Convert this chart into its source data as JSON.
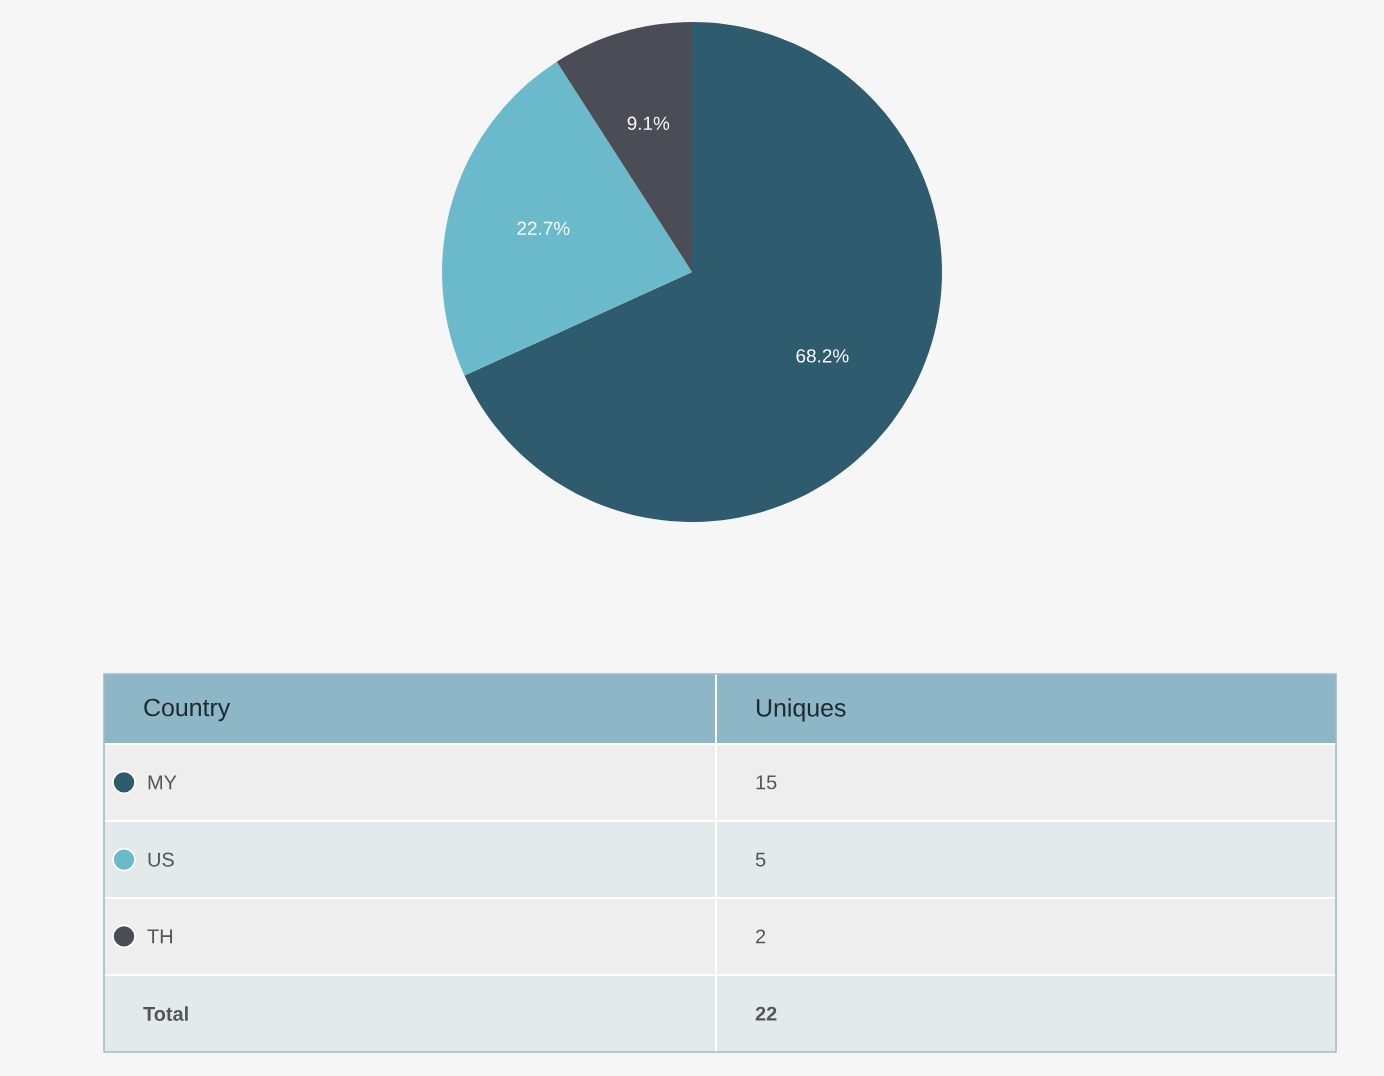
{
  "chart_data": {
    "type": "pie",
    "categories": [
      "MY",
      "US",
      "TH"
    ],
    "values": [
      68.2,
      22.7,
      9.1
    ],
    "colors": [
      "#2e5b6e",
      "#6bbacc",
      "#4a4c56"
    ],
    "value_labels": [
      "68.2%",
      "22.7%",
      "9.1%"
    ],
    "legend": "bottom",
    "annotations": [
      "Country",
      "Uniques",
      "Total",
      "22",
      "15",
      "5",
      "2"
    ]
  }
}
